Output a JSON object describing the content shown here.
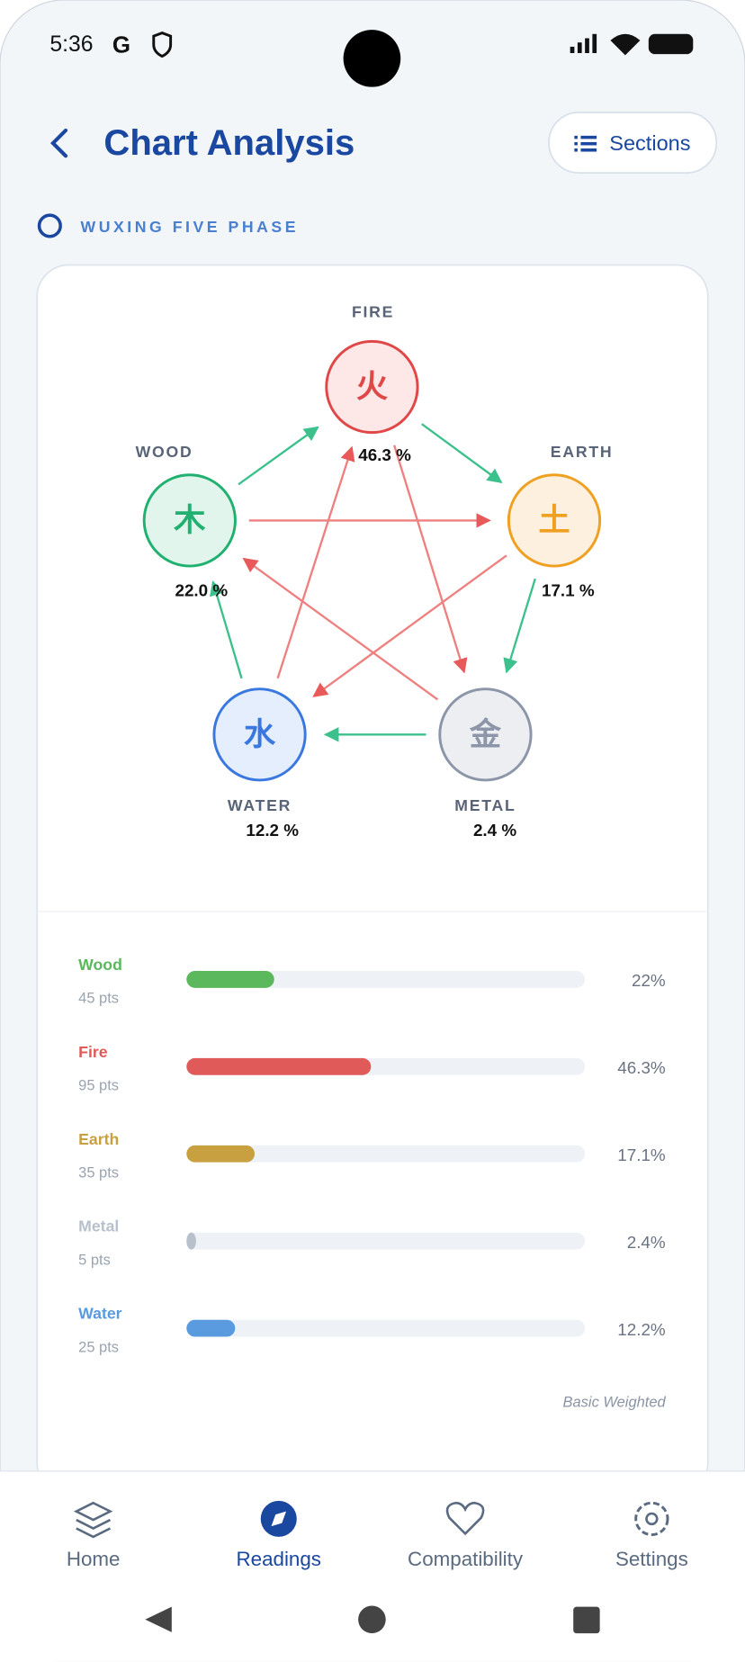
{
  "status_bar": {
    "time": "5:36"
  },
  "header": {
    "title": "Chart Analysis",
    "button": "Sections"
  },
  "section": {
    "label": "WUXING FIVE PHASE"
  },
  "diagram": {
    "nodes": [
      {
        "name": "FIRE",
        "glyph": "火",
        "percent": "46.3 %"
      },
      {
        "name": "EARTH",
        "glyph": "土",
        "percent": "17.1 %"
      },
      {
        "name": "METAL",
        "glyph": "金",
        "percent": "2.4 %"
      },
      {
        "name": "WATER",
        "glyph": "水",
        "percent": "12.2 %"
      },
      {
        "name": "WOOD",
        "glyph": "木",
        "percent": "22.0 %"
      }
    ]
  },
  "bars": {
    "rows": [
      {
        "name": "Wood",
        "points": "45 pts",
        "percent": {
          "value": 22,
          "label": "22%"
        }
      },
      {
        "name": "Fire",
        "points": "95 pts",
        "percent": {
          "value": 46.3,
          "label": "46.3%"
        }
      },
      {
        "name": "Earth",
        "points": "35 pts",
        "percent": {
          "value": 17.1,
          "label": "17.1%"
        }
      },
      {
        "name": "Metal",
        "points": "5 pts",
        "percent": {
          "value": 2.4,
          "label": "2.4%"
        }
      },
      {
        "name": "Water",
        "points": "25 pts",
        "percent": {
          "value": 12.2,
          "label": "12.2%"
        }
      }
    ],
    "method": "Basic Weighted"
  },
  "nav": {
    "items": [
      "Home",
      "Readings",
      "Compatibility",
      "Settings"
    ]
  }
}
